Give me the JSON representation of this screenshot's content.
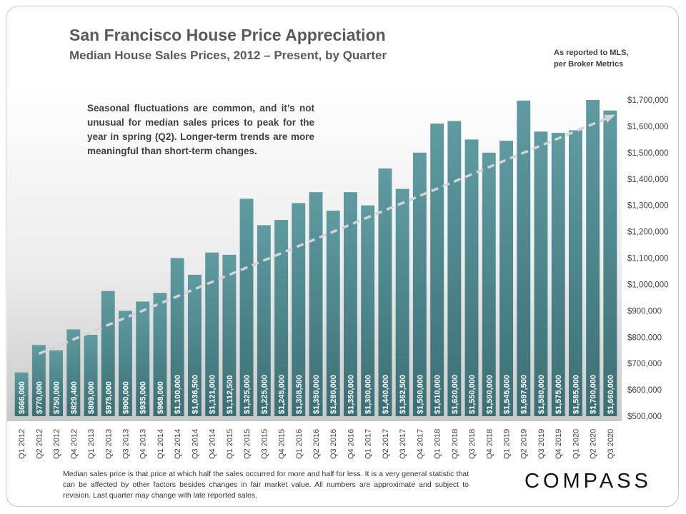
{
  "header": {
    "title": "San Francisco House Price Appreciation",
    "subtitle": "Median House Sales Prices, 2012 – Present, by Quarter",
    "source_line1": "As reported to MLS,",
    "source_line2": "per Broker Metrics"
  },
  "annotation": "Seasonal fluctuations are common, and it’s not unusual for median sales prices to peak for the year in spring (Q2). Longer-term trends are more meaningful than short-term changes.",
  "footnote": "Median sales price is that price at which half the sales occurred for more and half for less. It is a very general statistic that can be affected by other factors besides changes in fair market value. All numbers are approximate and subject to revision. Last quarter may change with late reported sales.",
  "logo": "COMPASS",
  "colors": {
    "bar_top": "#5f9ba1",
    "bar_bottom": "#3a6f75",
    "trend": "#d4d4d4",
    "axis_text": "#404040"
  },
  "chart_data": {
    "type": "bar",
    "title": "San Francisco House Price Appreciation",
    "subtitle": "Median House Sales Prices, 2012 – Present, by Quarter",
    "xlabel": "",
    "ylabel": "",
    "ylim": [
      500000,
      1700000
    ],
    "y_ticks": [
      500000,
      600000,
      700000,
      800000,
      900000,
      1000000,
      1100000,
      1200000,
      1300000,
      1400000,
      1500000,
      1600000,
      1700000
    ],
    "y_tick_labels": [
      "$500,000",
      "$600,000",
      "$700,000",
      "$800,000",
      "$900,000",
      "$1,000,000",
      "$1,100,000",
      "$1,200,000",
      "$1,300,000",
      "$1,400,000",
      "$1,500,000",
      "$1,600,000",
      "$1,700,000"
    ],
    "y_axis_position": "right",
    "categories": [
      "Q1 2012",
      "Q2 2012",
      "Q3 2012",
      "Q4 2012",
      "Q1 2013",
      "Q2 2013",
      "Q3 2013",
      "Q4 2013",
      "Q1 2014",
      "Q2 2014",
      "Q3 2014",
      "Q4 2014",
      "Q1 2015",
      "Q2 2015",
      "Q3 2015",
      "Q4 2015",
      "Q1 2016",
      "Q2 2016",
      "Q3 2016",
      "Q4 2016",
      "Q1 2017",
      "Q2 2017",
      "Q3 2017",
      "Q4 2017",
      "Q1 2018",
      "Q2 2018",
      "Q3 2018",
      "Q4 2018",
      "Q1 2019",
      "Q2 2019",
      "Q3 2019",
      "Q4 2019",
      "Q1 2020",
      "Q2 2020",
      "Q3 2020"
    ],
    "values": [
      666000,
      770000,
      750000,
      829400,
      809000,
      975000,
      900000,
      935000,
      968000,
      1100000,
      1036500,
      1121000,
      1112500,
      1325000,
      1225000,
      1245000,
      1308500,
      1350000,
      1280000,
      1350000,
      1300000,
      1440000,
      1362500,
      1500000,
      1610000,
      1620000,
      1550000,
      1500000,
      1545000,
      1697500,
      1580000,
      1575000,
      1585000,
      1700000,
      1660000
    ],
    "data_labels": [
      "$666,000",
      "$770,000",
      "$750,000",
      "$829,400",
      "$809,000",
      "$975,000",
      "$900,000",
      "$935,000",
      "$968,000",
      "$1,100,000",
      "$1,036,500",
      "$1,121,000",
      "$1,112,500",
      "$1,325,000",
      "$1,225,000",
      "$1,245,000",
      "$1,308,500",
      "$1,350,000",
      "$1,280,000",
      "$1,350,000",
      "$1,300,000",
      "$1,440,000",
      "$1,362,500",
      "$1,500,000",
      "$1,610,000",
      "$1,620,000",
      "$1,550,000",
      "$1,500,000",
      "$1,545,000",
      "$1,697,500",
      "$1,580,000",
      "$1,575,000",
      "$1,585,000",
      "$1,700,000",
      "$1,660,000"
    ],
    "trendline": {
      "style": "dashed",
      "start_value": 737000,
      "end_value": 1640000
    }
  }
}
